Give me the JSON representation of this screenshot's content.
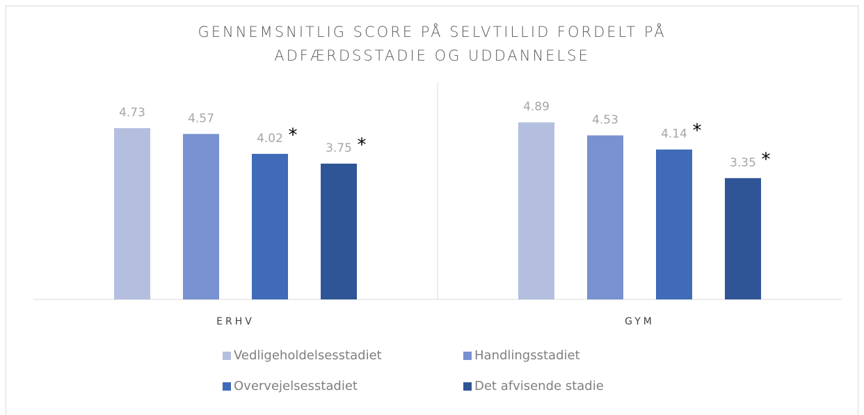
{
  "chart_data": {
    "type": "bar",
    "title": [
      "GENNEMSNITLIG SCORE PÅ SELVTILLID FORDELT PÅ",
      "ADFÆRDSSTADIE OG UDDANNELSE"
    ],
    "categories": [
      "ERHV",
      "GYM"
    ],
    "ylim": [
      0,
      6
    ],
    "series": [
      {
        "name": "Vedligeholdelsesstadiet",
        "color": "#b4bfe0",
        "values": [
          4.73,
          4.89
        ]
      },
      {
        "name": "Handlingsstadiet",
        "color": "#7891d0",
        "values": [
          4.57,
          4.53
        ]
      },
      {
        "name": "Overvejelsesstadiet",
        "color": "#3f6bb8",
        "values": [
          4.02,
          4.14
        ],
        "annotations": [
          "*",
          "*"
        ]
      },
      {
        "name": "Det afvisende stadie",
        "color": "#2f5597",
        "values": [
          3.75,
          3.35
        ],
        "annotations": [
          "*",
          "*"
        ]
      }
    ]
  }
}
